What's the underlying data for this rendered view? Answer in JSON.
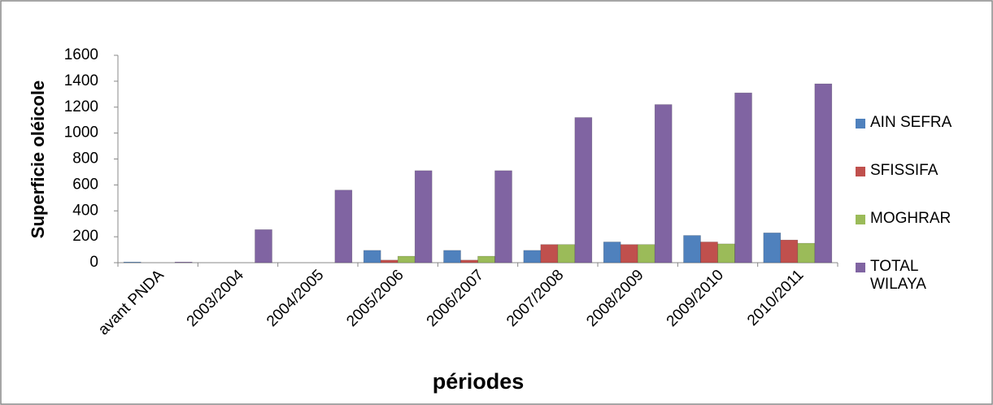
{
  "chart_data": {
    "type": "bar",
    "y_label": "Superficie oléicole",
    "x_label": "périodes",
    "categories": [
      "avant PNDA",
      "2003/2004",
      "2004/2005",
      "2005/2006",
      "2006/2007",
      "2007/2008",
      "2008/2009",
      "2009/2010",
      "2010/2011"
    ],
    "series": [
      {
        "name": "AIN SEFRA",
        "color": "#4f81bd",
        "values": [
          5,
          0,
          0,
          95,
          95,
          95,
          160,
          210,
          230
        ]
      },
      {
        "name": "SFISSIFA",
        "color": "#c0504d",
        "values": [
          0,
          0,
          0,
          20,
          20,
          140,
          140,
          160,
          175
        ]
      },
      {
        "name": "MOGHRAR",
        "color": "#9bbb59",
        "values": [
          0,
          0,
          0,
          50,
          50,
          140,
          140,
          145,
          150
        ]
      },
      {
        "name": "TOTAL WILAYA",
        "color": "#8064a2",
        "values": [
          5,
          255,
          560,
          710,
          710,
          1120,
          1220,
          1310,
          1380
        ]
      }
    ],
    "ylim": [
      0,
      1600
    ],
    "yticks": [
      0,
      200,
      400,
      600,
      800,
      1000,
      1200,
      1400,
      1600
    ],
    "grid": false,
    "legend": "right"
  }
}
